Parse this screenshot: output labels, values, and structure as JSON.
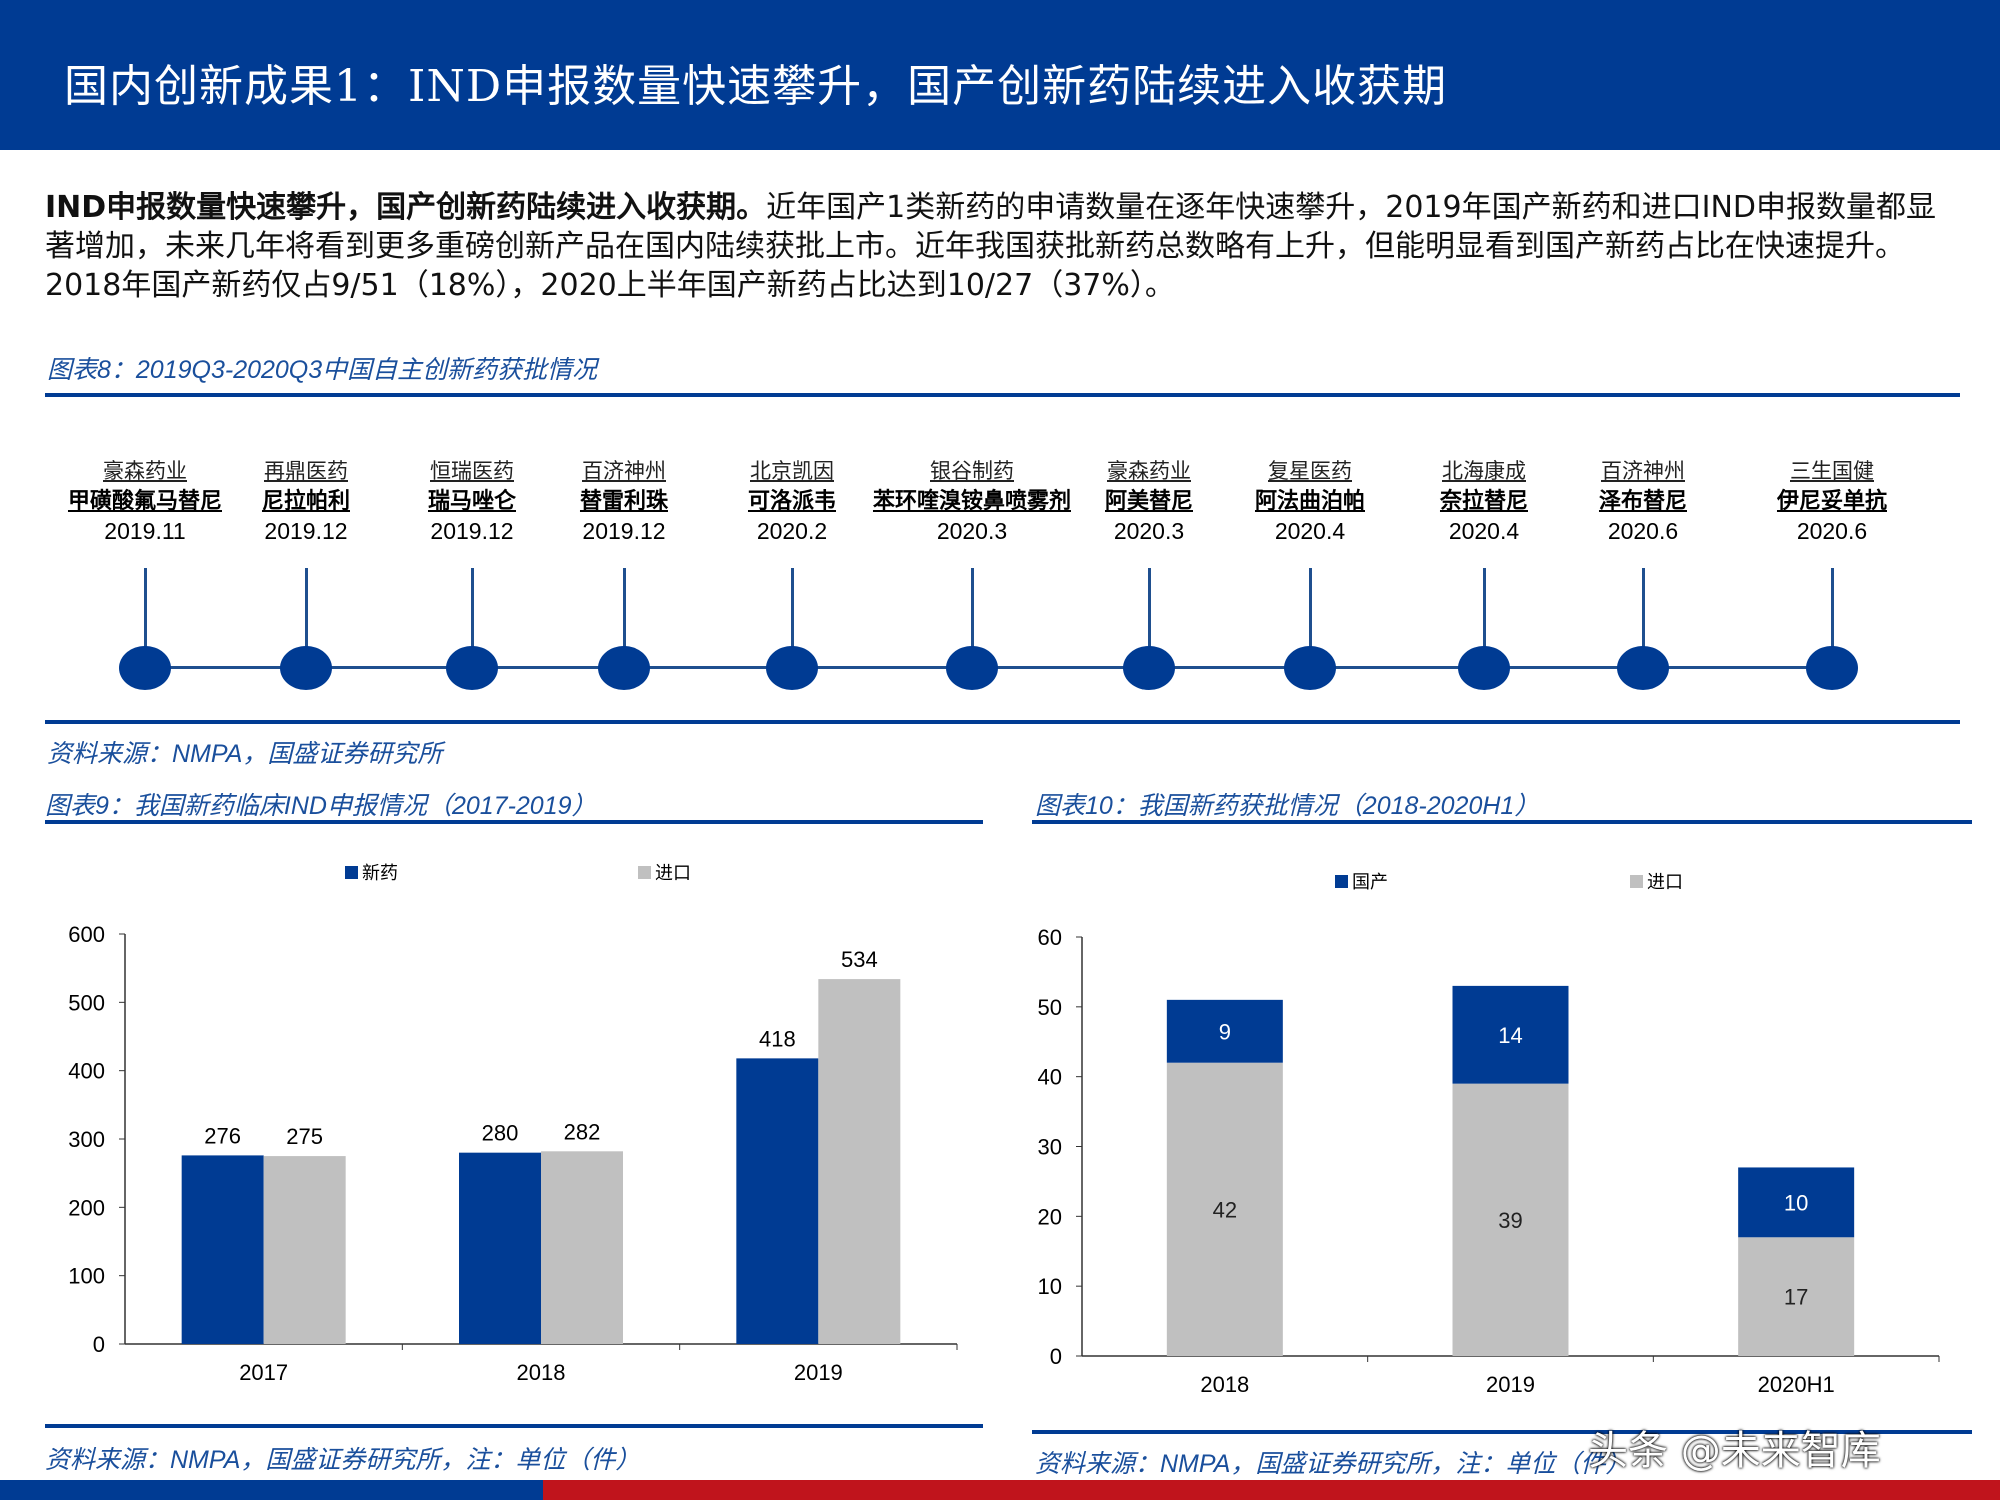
{
  "header": {
    "title": "国内创新成果1：IND申报数量快速攀升，国产创新药陆续进入收获期"
  },
  "paragraph": {
    "lead": "IND申报数量快速攀升，国产创新药陆续进入收获期。",
    "body": "近年国产1类新药的申请数量在逐年快速攀升，2019年国产新药和进口IND申报数量都显著增加，未来几年将看到更多重磅创新产品在国内陆续获批上市。近年我国获批新药总数略有上升，但能明显看到国产新药占比在快速提升。2018年国产新药仅占9/51（18%），2020上半年国产新药占比达到10/27（37%）。"
  },
  "figure8": {
    "label": "图表8：2019Q3-2020Q3中国自主创新药获批情况",
    "source": "资料来源：NMPA，国盛证券研究所",
    "items": [
      {
        "company": "豪森药业",
        "drug": "甲磺酸氟马替尼",
        "date": "2019.11"
      },
      {
        "company": "再鼎医药",
        "drug": "尼拉帕利",
        "date": "2019.12"
      },
      {
        "company": "恒瑞医药",
        "drug": "瑞马唑仑",
        "date": "2019.12"
      },
      {
        "company": "百济神州",
        "drug": "替雷利珠",
        "date": "2019.12"
      },
      {
        "company": "北京凯因",
        "drug": "可洛派韦",
        "date": "2020.2"
      },
      {
        "company": "银谷制药",
        "drug": "苯环喹溴铵鼻喷雾剂",
        "date": "2020.3"
      },
      {
        "company": "豪森药业",
        "drug": "阿美替尼",
        "date": "2020.3"
      },
      {
        "company": "复星医药",
        "drug": "阿法曲泊帕",
        "date": "2020.4"
      },
      {
        "company": "北海康成",
        "drug": "奈拉替尼",
        "date": "2020.4"
      },
      {
        "company": "百济神州",
        "drug": "泽布替尼",
        "date": "2020.6"
      },
      {
        "company": "三生国健",
        "drug": "伊尼妥单抗",
        "date": "2020.6"
      }
    ]
  },
  "figure9": {
    "label": "图表9：我国新药临床IND申报情况（2017-2019）",
    "source": "资料来源：NMPA，国盛证券研究所，注：单位（件）"
  },
  "figure10": {
    "label": "图表10：我国新药获批情况（2018-2020H1）",
    "source": "资料来源：NMPA，国盛证券研究所，注：单位（件）"
  },
  "watermark": "头条 @未来智库",
  "colors": {
    "primary": "#003b93",
    "secondary": "#c0c0c0",
    "accent_red": "#c0141c"
  },
  "chart_data": [
    {
      "type": "bar",
      "categories": [
        "2017",
        "2018",
        "2019"
      ],
      "ylim": [
        0,
        600
      ],
      "yticks": [
        0,
        100,
        200,
        300,
        400,
        500,
        600
      ],
      "legend": "top",
      "series": [
        {
          "name": "新药",
          "color": "#003b93",
          "values": [
            276,
            280,
            418
          ]
        },
        {
          "name": "进口",
          "color": "#c0c0c0",
          "values": [
            275,
            282,
            534
          ]
        }
      ]
    },
    {
      "type": "bar",
      "stacked": true,
      "categories": [
        "2018",
        "2019",
        "2020H1"
      ],
      "ylim": [
        0,
        60
      ],
      "yticks": [
        0,
        10,
        20,
        30,
        40,
        50,
        60
      ],
      "legend": "top",
      "series": [
        {
          "name": "进口",
          "color": "#c0c0c0",
          "values": [
            42,
            39,
            17
          ]
        },
        {
          "name": "国产",
          "color": "#003b93",
          "values": [
            9,
            14,
            10
          ]
        }
      ]
    }
  ]
}
